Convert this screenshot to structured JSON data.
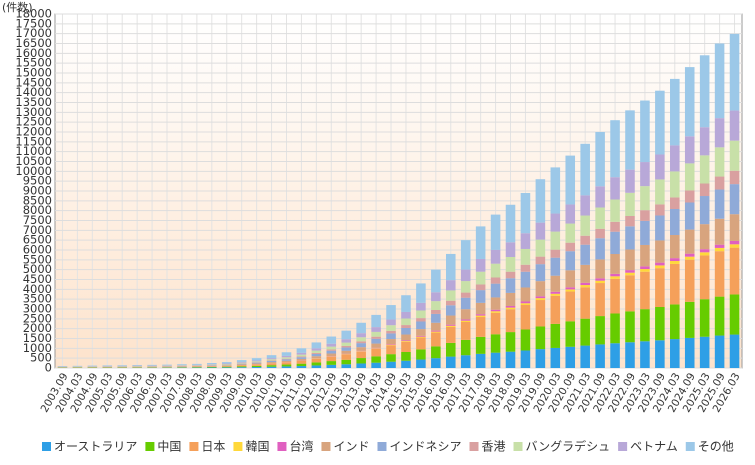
{
  "chart_data": {
    "type": "stacked-bar",
    "y_label": "(件数)",
    "categories": [
      "2003.09",
      "2004.03",
      "2004.09",
      "2005.03",
      "2005.09",
      "2006.03",
      "2006.09",
      "2007.03",
      "2007.09",
      "2008.03",
      "2008.09",
      "2009.03",
      "2009.09",
      "2010.03",
      "2010.09",
      "2011.03",
      "2011.09",
      "2012.03",
      "2012.09",
      "2013.03",
      "2013.09",
      "2014.03",
      "2014.09",
      "2015.03",
      "2015.09",
      "2016.03",
      "2016.09",
      "2017.03",
      "2017.09",
      "2018.03",
      "2018.09",
      "2019.03",
      "2019.09",
      "2020.03",
      "2020.09",
      "2021.03",
      "2021.09",
      "2022.03",
      "2022.09",
      "2023.03",
      "2023.09",
      "2024.03",
      "2024.09",
      "2025.03",
      "2025.09",
      "2026.03"
    ],
    "ylim": [
      0,
      18000
    ],
    "yticks": [
      0,
      500,
      1000,
      1500,
      2000,
      2500,
      3000,
      3500,
      4000,
      4500,
      5000,
      5500,
      6000,
      6500,
      7000,
      7500,
      8000,
      8500,
      9000,
      9500,
      10000,
      10500,
      11000,
      11500,
      12000,
      12500,
      13000,
      13500,
      14000,
      14500,
      15000,
      15500,
      16000,
      16500,
      17000,
      17500,
      18000
    ],
    "grid": true,
    "legend": "bottom",
    "series": [
      {
        "name": "オーストラリア",
        "color": "#2e9fe6",
        "values": [
          10,
          11,
          12,
          13,
          14,
          15,
          16,
          17,
          19,
          21,
          25,
          30,
          40,
          50,
          65,
          80,
          100,
          130,
          160,
          190,
          230,
          270,
          320,
          370,
          430,
          500,
          580,
          650,
          720,
          780,
          830,
          890,
          960,
          1020,
          1080,
          1140,
          1200,
          1260,
          1310,
          1360,
          1410,
          1470,
          1530,
          1590,
          1650,
          1700
        ]
      },
      {
        "name": "中国",
        "color": "#66cc00",
        "values": [
          12,
          13,
          14,
          16,
          17,
          18,
          19,
          20,
          23,
          25,
          30,
          36,
          48,
          60,
          78,
          96,
          120,
          156,
          192,
          228,
          276,
          324,
          384,
          444,
          516,
          600,
          696,
          780,
          864,
          936,
          996,
          1068,
          1152,
          1224,
          1296,
          1368,
          1440,
          1512,
          1572,
          1632,
          1692,
          1764,
          1836,
          1908,
          1980,
          2040
        ]
      },
      {
        "name": "日本",
        "color": "#f5a05a",
        "values": [
          14,
          15,
          17,
          18,
          20,
          21,
          22,
          24,
          27,
          29,
          35,
          42,
          56,
          70,
          91,
          112,
          140,
          182,
          224,
          266,
          322,
          378,
          448,
          518,
          602,
          700,
          812,
          910,
          1008,
          1092,
          1162,
          1246,
          1344,
          1428,
          1512,
          1596,
          1680,
          1764,
          1834,
          1904,
          1974,
          2058,
          2142,
          2226,
          2310,
          2380
        ]
      },
      {
        "name": "韓国",
        "color": "#ffd83a",
        "values": [
          1,
          1,
          1,
          1,
          1,
          2,
          2,
          2,
          2,
          2,
          3,
          3,
          4,
          5,
          7,
          8,
          10,
          13,
          16,
          19,
          23,
          27,
          32,
          37,
          43,
          50,
          58,
          65,
          72,
          78,
          83,
          89,
          96,
          102,
          108,
          114,
          120,
          126,
          131,
          136,
          141,
          147,
          153,
          159,
          165,
          170
        ]
      },
      {
        "name": "台湾",
        "color": "#e060c0",
        "values": [
          1,
          1,
          1,
          1,
          1,
          2,
          2,
          2,
          2,
          2,
          3,
          3,
          4,
          5,
          7,
          8,
          10,
          13,
          16,
          19,
          23,
          27,
          32,
          37,
          43,
          50,
          58,
          65,
          72,
          78,
          83,
          89,
          96,
          102,
          108,
          114,
          120,
          126,
          131,
          136,
          141,
          147,
          153,
          159,
          165,
          170
        ]
      },
      {
        "name": "インド",
        "color": "#d8a47e",
        "values": [
          8,
          9,
          10,
          10,
          11,
          12,
          13,
          14,
          15,
          17,
          20,
          24,
          32,
          40,
          52,
          64,
          80,
          104,
          128,
          152,
          184,
          216,
          256,
          296,
          344,
          400,
          464,
          520,
          576,
          624,
          664,
          712,
          768,
          816,
          864,
          912,
          960,
          1008,
          1048,
          1088,
          1128,
          1176,
          1224,
          1272,
          1320,
          1360
        ]
      },
      {
        "name": "インドネシア",
        "color": "#8faad8",
        "values": [
          9,
          10,
          11,
          12,
          13,
          14,
          14,
          15,
          17,
          19,
          23,
          27,
          36,
          45,
          59,
          72,
          90,
          117,
          144,
          171,
          207,
          243,
          288,
          333,
          387,
          450,
          522,
          585,
          648,
          702,
          747,
          801,
          864,
          918,
          972,
          1026,
          1080,
          1134,
          1179,
          1224,
          1269,
          1323,
          1377,
          1431,
          1485,
          1530
        ]
      },
      {
        "name": "香港",
        "color": "#d9a0a0",
        "values": [
          4,
          4,
          5,
          5,
          6,
          6,
          6,
          7,
          8,
          8,
          10,
          12,
          16,
          20,
          26,
          32,
          40,
          52,
          64,
          76,
          92,
          108,
          128,
          148,
          172,
          200,
          232,
          260,
          288,
          312,
          332,
          356,
          384,
          408,
          432,
          456,
          480,
          504,
          524,
          544,
          564,
          588,
          612,
          636,
          660,
          680
        ]
      },
      {
        "name": "バングラデシュ",
        "color": "#c8e0a8",
        "values": [
          9,
          10,
          11,
          12,
          13,
          14,
          14,
          15,
          17,
          19,
          23,
          27,
          36,
          45,
          59,
          72,
          90,
          117,
          144,
          171,
          207,
          243,
          288,
          333,
          387,
          450,
          522,
          585,
          648,
          702,
          747,
          801,
          864,
          918,
          972,
          1026,
          1080,
          1134,
          1179,
          1224,
          1269,
          1323,
          1377,
          1431,
          1485,
          1530
        ]
      },
      {
        "name": "ベトナム",
        "color": "#b8a8d8",
        "values": [
          9,
          10,
          11,
          12,
          13,
          14,
          14,
          15,
          17,
          19,
          23,
          27,
          36,
          45,
          59,
          72,
          90,
          117,
          144,
          171,
          207,
          243,
          288,
          333,
          387,
          450,
          522,
          585,
          648,
          702,
          747,
          801,
          864,
          918,
          972,
          1026,
          1080,
          1134,
          1179,
          1224,
          1269,
          1323,
          1377,
          1431,
          1485,
          1530
        ]
      },
      {
        "name": "その他",
        "color": "#9cc8e8",
        "values": [
          23,
          25,
          28,
          30,
          32,
          35,
          37,
          39,
          44,
          48,
          58,
          69,
          92,
          115,
          150,
          184,
          230,
          299,
          368,
          437,
          529,
          621,
          736,
          851,
          989,
          1150,
          1334,
          1495,
          1656,
          1794,
          1909,
          2047,
          2208,
          2346,
          2484,
          2622,
          2760,
          2898,
          3013,
          3128,
          3243,
          3381,
          3519,
          3657,
          3795,
          3896
        ]
      }
    ]
  }
}
